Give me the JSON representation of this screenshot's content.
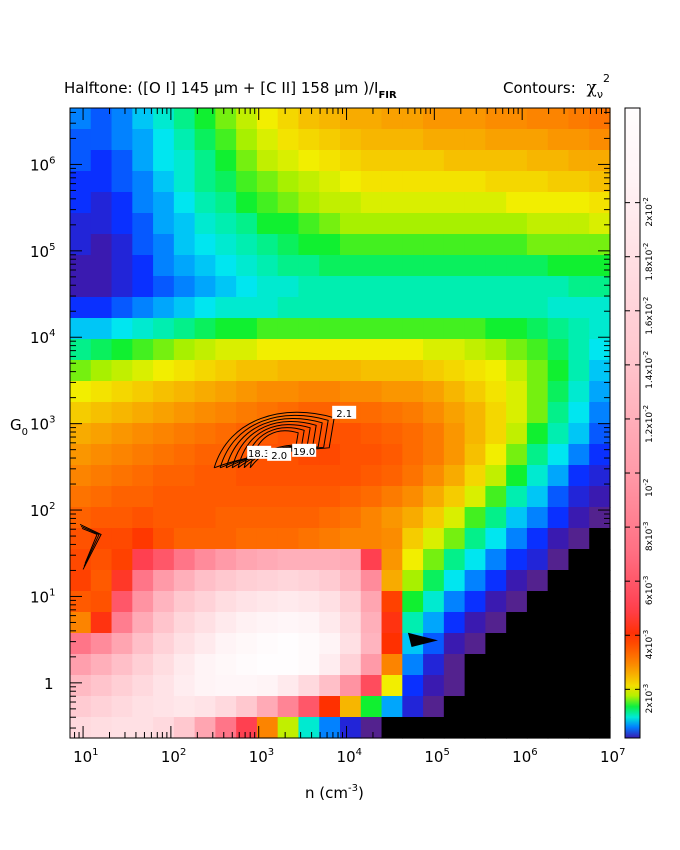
{
  "chart_data": {
    "type": "heatmap",
    "title": "Halftone: ([O I] 145 μm + [C II] 158 μm )/I",
    "title_sub": "FIR",
    "contours_label": "Contours:",
    "contours_symbol": "χ",
    "contours_sub": "ν",
    "contours_sup": "2",
    "xlabel": "n (cm",
    "xlabel_sup": "-3",
    "xlabel_close": ")",
    "ylabel": "G",
    "ylabel_sub": "0",
    "x_scale": "log",
    "y_scale": "log",
    "xlim": [
      7.1,
      10000000
    ],
    "ylim": [
      0.23,
      4500000
    ],
    "x_ticks": [
      {
        "value": 10,
        "base": "10",
        "exp": "1"
      },
      {
        "value": 100,
        "base": "10",
        "exp": "2"
      },
      {
        "value": 1000,
        "base": "10",
        "exp": "3"
      },
      {
        "value": 10000,
        "base": "10",
        "exp": "4"
      },
      {
        "value": 100000,
        "base": "10",
        "exp": "5"
      },
      {
        "value": 1000000,
        "base": "10",
        "exp": "6"
      },
      {
        "value": 10000000,
        "base": "10",
        "exp": "7"
      }
    ],
    "y_ticks": [
      {
        "value": 1,
        "base": "1",
        "exp": ""
      },
      {
        "value": 10,
        "base": "10",
        "exp": "1"
      },
      {
        "value": 100,
        "base": "10",
        "exp": "2"
      },
      {
        "value": 1000,
        "base": "10",
        "exp": "3"
      },
      {
        "value": 10000,
        "base": "10",
        "exp": "4"
      },
      {
        "value": 100000,
        "base": "10",
        "exp": "5"
      },
      {
        "value": 1000000,
        "base": "10",
        "exp": "6"
      }
    ],
    "colorbar": {
      "range": [
        0.0002,
        0.0235
      ],
      "ticks": [
        {
          "value": 0.002,
          "base": "2x10",
          "exp": "-3"
        },
        {
          "value": 0.004,
          "base": "4x10",
          "exp": "-3"
        },
        {
          "value": 0.006,
          "base": "6x10",
          "exp": "-3"
        },
        {
          "value": 0.008,
          "base": "8x10",
          "exp": "-3"
        },
        {
          "value": 0.01,
          "base": "10",
          "exp": "-2"
        },
        {
          "value": 0.012,
          "base": "1.2x10",
          "exp": "-2"
        },
        {
          "value": 0.014,
          "base": "1.4x10",
          "exp": "-2"
        },
        {
          "value": 0.016,
          "base": "1.6x10",
          "exp": "-2"
        },
        {
          "value": 0.018,
          "base": "1.8x10",
          "exp": "-2"
        },
        {
          "value": 0.02,
          "base": "2x10",
          "exp": "-2"
        }
      ],
      "colors": [
        "#f2ee00",
        "#f6c000",
        "#fb8c00",
        "#ff5600",
        "#ff1010",
        "#ff5a6e",
        "#ff8a9a",
        "#ffb3be",
        "#ffd6dc",
        "#ffeef1",
        "#ffffff"
      ]
    },
    "grid_cols": 26,
    "grid_rows": 30,
    "log_x_range": [
      0.85,
      7.0
    ],
    "log_y_range": [
      -0.64,
      6.65
    ],
    "values_1e3": [
      [
        0.6,
        0.5,
        0.6,
        0.8,
        1.0,
        1.2,
        1.4,
        1.6,
        1.8,
        2.0,
        2.2,
        2.4,
        2.5,
        2.6,
        2.6,
        2.7,
        2.7,
        2.8,
        2.8,
        2.8,
        2.9,
        2.9,
        3.0,
        3.0,
        3.1,
        3.2
      ],
      [
        0.5,
        0.5,
        0.6,
        0.7,
        0.9,
        1.1,
        1.3,
        1.5,
        1.7,
        1.9,
        2.1,
        2.2,
        2.3,
        2.4,
        2.5,
        2.5,
        2.5,
        2.6,
        2.6,
        2.6,
        2.7,
        2.7,
        2.7,
        2.8,
        2.8,
        2.9
      ],
      [
        0.5,
        0.4,
        0.5,
        0.7,
        0.9,
        1.0,
        1.2,
        1.4,
        1.6,
        1.8,
        1.9,
        2.0,
        2.1,
        2.2,
        2.3,
        2.3,
        2.3,
        2.3,
        2.4,
        2.4,
        2.4,
        2.4,
        2.5,
        2.5,
        2.6,
        2.6
      ],
      [
        0.4,
        0.4,
        0.5,
        0.6,
        0.8,
        1.0,
        1.2,
        1.3,
        1.5,
        1.6,
        1.7,
        1.8,
        1.9,
        2.0,
        2.1,
        2.1,
        2.1,
        2.1,
        2.1,
        2.1,
        2.2,
        2.2,
        2.2,
        2.3,
        2.3,
        2.4
      ],
      [
        0.4,
        0.3,
        0.4,
        0.6,
        0.7,
        0.9,
        1.1,
        1.2,
        1.4,
        1.5,
        1.6,
        1.7,
        1.8,
        1.8,
        1.9,
        1.9,
        1.9,
        1.9,
        1.9,
        1.9,
        1.9,
        2.0,
        2.0,
        2.0,
        2.0,
        2.1
      ],
      [
        0.3,
        0.3,
        0.4,
        0.5,
        0.7,
        0.8,
        1.0,
        1.1,
        1.2,
        1.4,
        1.4,
        1.5,
        1.6,
        1.7,
        1.7,
        1.7,
        1.7,
        1.7,
        1.7,
        1.7,
        1.7,
        1.7,
        1.8,
        1.8,
        1.8,
        1.9
      ],
      [
        0.3,
        0.2,
        0.3,
        0.5,
        0.6,
        0.8,
        0.9,
        1.0,
        1.1,
        1.2,
        1.3,
        1.4,
        1.4,
        1.5,
        1.5,
        1.5,
        1.5,
        1.5,
        1.5,
        1.5,
        1.5,
        1.5,
        1.6,
        1.6,
        1.6,
        1.6
      ],
      [
        0.2,
        0.2,
        0.3,
        0.4,
        0.6,
        0.7,
        0.8,
        0.9,
        1.0,
        1.1,
        1.2,
        1.2,
        1.3,
        1.3,
        1.3,
        1.3,
        1.3,
        1.3,
        1.3,
        1.3,
        1.3,
        1.3,
        1.3,
        1.4,
        1.4,
        1.4
      ],
      [
        0.2,
        0.2,
        0.3,
        0.4,
        0.5,
        0.6,
        0.7,
        0.8,
        0.9,
        1.0,
        1.0,
        1.1,
        1.1,
        1.1,
        1.1,
        1.1,
        1.1,
        1.1,
        1.1,
        1.1,
        1.1,
        1.1,
        1.1,
        1.1,
        1.2,
        1.2
      ],
      [
        0.4,
        0.4,
        0.5,
        0.6,
        0.7,
        0.8,
        0.9,
        1.0,
        1.0,
        1.0,
        1.1,
        1.1,
        1.1,
        1.1,
        1.1,
        1.1,
        1.1,
        1.1,
        1.1,
        1.1,
        1.1,
        1.1,
        1.1,
        1.0,
        1.0,
        1.0
      ],
      [
        0.8,
        0.8,
        0.9,
        1.0,
        1.1,
        1.2,
        1.3,
        1.4,
        1.4,
        1.5,
        1.5,
        1.5,
        1.5,
        1.5,
        1.5,
        1.5,
        1.5,
        1.5,
        1.5,
        1.5,
        1.4,
        1.4,
        1.3,
        1.2,
        1.1,
        1.0
      ],
      [
        1.2,
        1.3,
        1.4,
        1.5,
        1.6,
        1.7,
        1.8,
        1.9,
        1.9,
        2.0,
        2.0,
        2.0,
        2.0,
        2.0,
        2.0,
        2.0,
        2.0,
        1.9,
        1.9,
        1.8,
        1.7,
        1.6,
        1.5,
        1.3,
        1.1,
        0.9
      ],
      [
        1.6,
        1.7,
        1.8,
        1.9,
        2.0,
        2.1,
        2.2,
        2.3,
        2.4,
        2.4,
        2.5,
        2.5,
        2.5,
        2.5,
        2.4,
        2.4,
        2.4,
        2.3,
        2.2,
        2.1,
        2.0,
        1.8,
        1.6,
        1.4,
        1.1,
        0.8
      ],
      [
        2.0,
        2.1,
        2.2,
        2.3,
        2.4,
        2.5,
        2.6,
        2.7,
        2.8,
        2.9,
        2.9,
        3.0,
        3.0,
        2.9,
        2.9,
        2.8,
        2.8,
        2.7,
        2.5,
        2.3,
        2.1,
        1.9,
        1.6,
        1.3,
        1.0,
        0.7
      ],
      [
        2.3,
        2.4,
        2.5,
        2.6,
        2.7,
        2.8,
        2.9,
        3.0,
        3.1,
        3.2,
        3.3,
        3.4,
        3.4,
        3.3,
        3.3,
        3.2,
        3.1,
        2.9,
        2.7,
        2.5,
        2.2,
        1.9,
        1.6,
        1.2,
        0.9,
        0.6
      ],
      [
        2.6,
        2.7,
        2.8,
        2.9,
        3.0,
        3.1,
        3.2,
        3.3,
        3.4,
        3.5,
        3.6,
        3.6,
        3.6,
        3.6,
        3.5,
        3.4,
        3.3,
        3.1,
        2.8,
        2.5,
        2.2,
        1.8,
        1.4,
        1.1,
        0.8,
        0.5
      ],
      [
        2.8,
        2.9,
        3.0,
        3.1,
        3.2,
        3.3,
        3.4,
        3.4,
        3.5,
        3.6,
        3.6,
        3.7,
        3.7,
        3.6,
        3.6,
        3.5,
        3.3,
        3.1,
        2.8,
        2.4,
        2.0,
        1.6,
        1.2,
        0.9,
        0.6,
        0.4
      ],
      [
        3.0,
        3.1,
        3.2,
        3.3,
        3.4,
        3.4,
        3.5,
        3.5,
        3.6,
        3.6,
        3.6,
        3.6,
        3.6,
        3.6,
        3.5,
        3.4,
        3.2,
        2.9,
        2.6,
        2.2,
        1.8,
        1.4,
        1.0,
        0.7,
        0.4,
        0.3
      ],
      [
        3.2,
        3.3,
        3.4,
        3.4,
        3.5,
        3.5,
        3.5,
        3.5,
        3.5,
        3.5,
        3.5,
        3.5,
        3.5,
        3.4,
        3.3,
        3.1,
        2.9,
        2.6,
        2.3,
        1.9,
        1.5,
        1.1,
        0.8,
        0.5,
        0.3,
        0.2
      ],
      [
        3.4,
        3.5,
        3.5,
        3.6,
        3.5,
        3.5,
        3.5,
        3.4,
        3.4,
        3.4,
        3.4,
        3.4,
        3.3,
        3.2,
        3.0,
        2.8,
        2.6,
        2.3,
        1.9,
        1.5,
        1.2,
        0.8,
        0.6,
        0.4,
        0.2,
        0.1
      ],
      [
        3.6,
        3.7,
        3.7,
        3.9,
        3.6,
        3.4,
        3.4,
        3.4,
        3.3,
        3.3,
        3.3,
        3.2,
        3.1,
        3.0,
        3.0,
        2.9,
        2.3,
        1.9,
        1.6,
        1.2,
        0.9,
        0.6,
        0.4,
        0.2,
        0.1,
        0.0
      ],
      [
        3.7,
        3.6,
        3.8,
        5.0,
        6.0,
        7.5,
        9.0,
        10.0,
        11.0,
        11.5,
        12.0,
        12.0,
        12.0,
        11.5,
        5.0,
        2.8,
        2.0,
        1.6,
        1.2,
        0.9,
        0.6,
        0.4,
        0.3,
        0.1,
        0.0,
        0.0
      ],
      [
        3.8,
        3.5,
        4.5,
        7.5,
        10.0,
        12.0,
        13.5,
        14.5,
        15.5,
        16.0,
        16.5,
        16.0,
        15.0,
        13.0,
        9.0,
        2.6,
        1.7,
        1.3,
        0.9,
        0.6,
        0.4,
        0.2,
        0.1,
        0.0,
        0.0,
        0.0
      ],
      [
        3.5,
        3.6,
        6.0,
        9.5,
        12.5,
        14.5,
        16.0,
        17.5,
        18.5,
        19.0,
        19.5,
        19.0,
        18.0,
        15.5,
        11.0,
        3.8,
        1.4,
        1.0,
        0.6,
        0.4,
        0.2,
        0.1,
        0.0,
        0.0,
        0.0,
        0.0
      ],
      [
        3.0,
        4.2,
        8.0,
        11.5,
        14.0,
        16.5,
        18.0,
        19.5,
        20.5,
        21.0,
        21.5,
        21.0,
        19.5,
        17.0,
        12.0,
        4.2,
        1.1,
        0.7,
        0.4,
        0.2,
        0.1,
        0.0,
        0.0,
        0.0,
        0.0,
        0.0
      ],
      [
        7.5,
        9.0,
        11.0,
        13.5,
        16.0,
        18.0,
        19.5,
        21.0,
        22.0,
        23.0,
        23.5,
        22.5,
        21.0,
        18.0,
        12.5,
        4.0,
        0.8,
        0.5,
        0.2,
        0.1,
        0.0,
        0.0,
        0.0,
        0.0,
        0.0,
        0.0
      ],
      [
        10.5,
        12.0,
        13.5,
        15.5,
        17.5,
        19.5,
        21.0,
        22.0,
        23.0,
        23.5,
        23.5,
        22.5,
        20.0,
        16.0,
        10.0,
        3.0,
        0.6,
        0.3,
        0.1,
        0.0,
        0.0,
        0.0,
        0.0,
        0.0,
        0.0,
        0.0
      ],
      [
        13.0,
        14.0,
        15.5,
        17.0,
        18.5,
        20.0,
        21.0,
        21.5,
        21.5,
        21.0,
        19.5,
        17.0,
        13.5,
        9.5,
        5.5,
        2.0,
        0.4,
        0.2,
        0.1,
        0.0,
        0.0,
        0.0,
        0.0,
        0.0,
        0.0,
        0.0
      ],
      [
        15.0,
        16.0,
        17.0,
        18.0,
        18.5,
        19.0,
        18.5,
        17.0,
        14.5,
        11.5,
        8.5,
        6.0,
        4.0,
        2.5,
        1.4,
        0.7,
        0.3,
        0.1,
        0.0,
        0.0,
        0.0,
        0.0,
        0.0,
        0.0,
        0.0,
        0.0
      ],
      [
        17.0,
        17.5,
        18.0,
        18.0,
        17.0,
        14.5,
        11.0,
        7.5,
        5.0,
        3.0,
        1.8,
        1.0,
        0.6,
        0.3,
        0.1,
        0.0,
        0.0,
        0.0,
        0.0,
        0.0,
        0.0,
        0.0,
        0.0,
        0.0,
        0.0,
        0.0
      ]
    ],
    "contour_labels": [
      "2.1",
      "19.0",
      "18.3",
      "2.0"
    ]
  }
}
